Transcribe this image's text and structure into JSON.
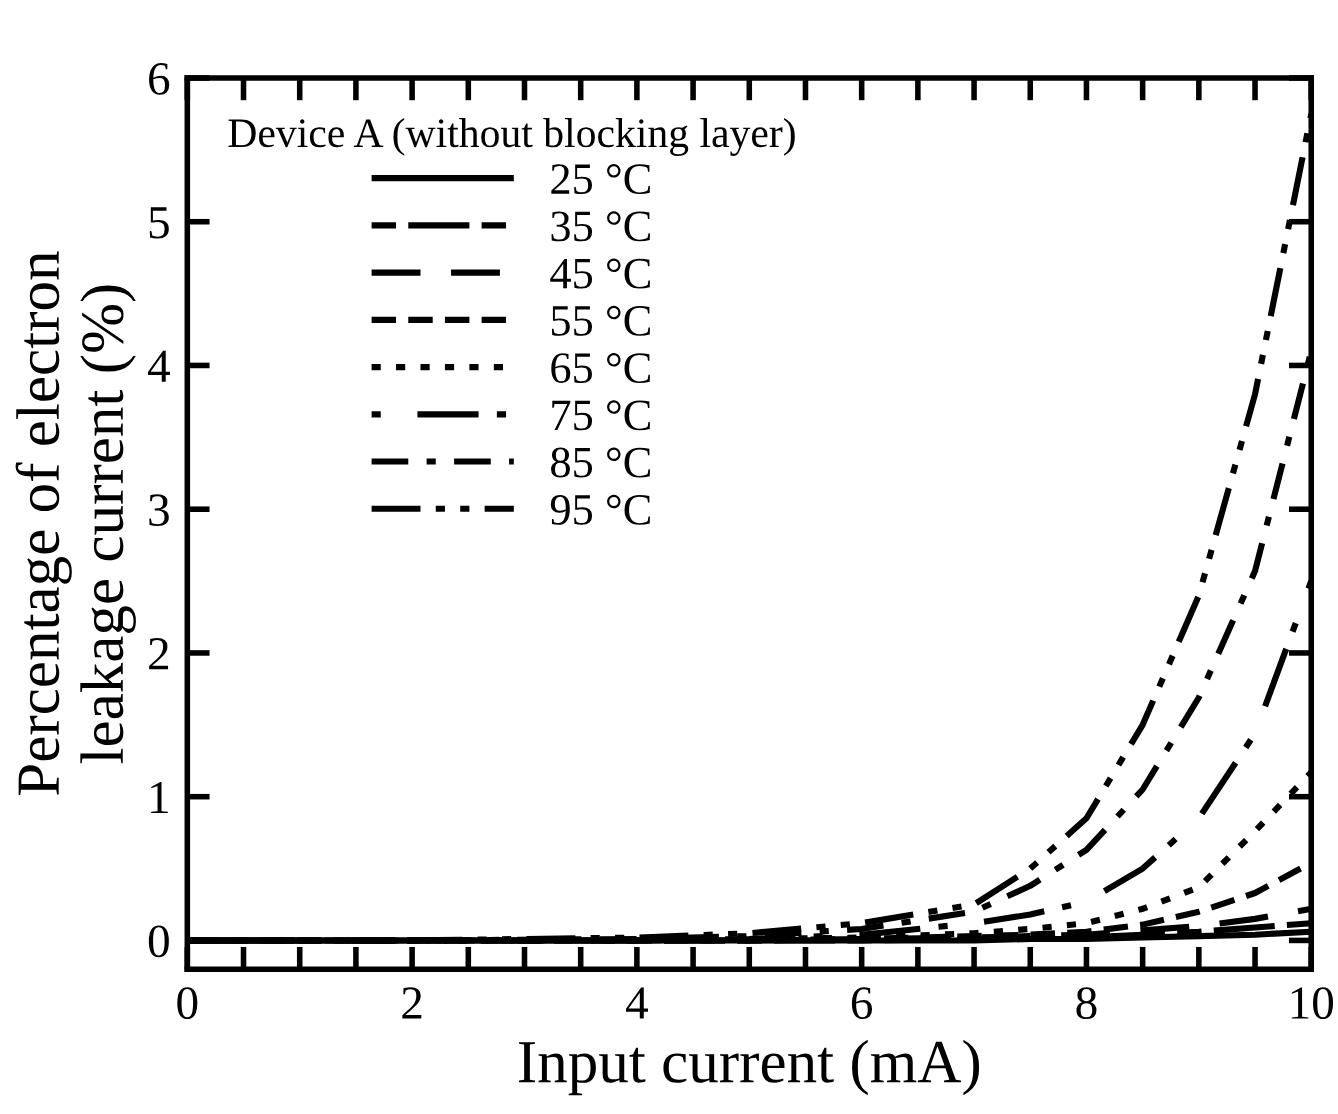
{
  "chart_data": {
    "type": "line",
    "xlabel": "Input current (mA)",
    "ylabel": "Percentage of electron\nleakage current (%)",
    "legend_title": "Device A (without blocking layer)",
    "legend": "top left",
    "grid": false,
    "marker": "none",
    "x": [
      0,
      2,
      4,
      5,
      6,
      7,
      7.5,
      8,
      8.5,
      9,
      9.5,
      10
    ],
    "xlim": [
      0,
      10
    ],
    "ylim": [
      -0.2,
      6
    ],
    "xticks": [
      0,
      {
        "value": 0.5,
        "label": null
      },
      2,
      {
        "value": 1,
        "label": null
      },
      {
        "value": 1.5,
        "label": null
      },
      {
        "value": 2.5,
        "label": null
      },
      {
        "value": 3,
        "label": null
      },
      {
        "value": 3.5,
        "label": null
      },
      4,
      {
        "value": 4.5,
        "label": null
      },
      {
        "value": 5,
        "label": null
      },
      {
        "value": 5.5,
        "label": null
      },
      6,
      {
        "value": 6.5,
        "label": null
      },
      {
        "value": 7,
        "label": null
      },
      {
        "value": 7.5,
        "label": null
      },
      8,
      {
        "value": 8.5,
        "label": null
      },
      {
        "value": 9,
        "label": null
      },
      {
        "value": 9.5,
        "label": null
      },
      10
    ],
    "yticks": [
      0,
      1,
      2,
      3,
      4,
      5,
      6
    ],
    "series": [
      {
        "name": "25 °C",
        "color": "#000000",
        "line_style": "solid",
        "values": [
          0,
          0,
          0,
          0,
          0,
          0,
          0.01,
          0.01,
          0.02,
          0.03,
          0.04,
          0.06
        ]
      },
      {
        "name": "35 °C",
        "color": "#000000",
        "line_style": "dash-longdash",
        "values": [
          0,
          0,
          0,
          0,
          0,
          0.01,
          0.01,
          0.02,
          0.04,
          0.06,
          0.09,
          0.12
        ]
      },
      {
        "name": "45 °C",
        "color": "#000000",
        "line_style": "longdash",
        "values": [
          0,
          0,
          0,
          0,
          0.01,
          0.02,
          0.03,
          0.04,
          0.07,
          0.1,
          0.15,
          0.22
        ]
      },
      {
        "name": "55 °C",
        "color": "#000000",
        "line_style": "dashed",
        "values": [
          0,
          0,
          0,
          0,
          0.01,
          0.03,
          0.04,
          0.06,
          0.11,
          0.2,
          0.33,
          0.54
        ]
      },
      {
        "name": "65 °C",
        "color": "#000000",
        "line_style": "dotted",
        "values": [
          0,
          0,
          0,
          0.01,
          0.02,
          0.05,
          0.08,
          0.12,
          0.22,
          0.37,
          0.76,
          1.17
        ]
      },
      {
        "name": "75 °C",
        "color": "#000000",
        "line_style": "dot-longdash",
        "values": [
          0,
          0,
          0,
          0.01,
          0.04,
          0.12,
          0.18,
          0.27,
          0.5,
          0.85,
          1.44,
          2.5
        ]
      },
      {
        "name": "85 °C",
        "color": "#000000",
        "line_style": "dashdot",
        "values": [
          0,
          0,
          0.01,
          0.03,
          0.08,
          0.2,
          0.38,
          0.63,
          1.05,
          1.69,
          2.57,
          4.1
        ]
      },
      {
        "name": "95 °C",
        "color": "#000000",
        "line_style": "dashdotdot",
        "values": [
          0,
          0,
          0.02,
          0.05,
          0.12,
          0.25,
          0.5,
          0.85,
          1.5,
          2.4,
          3.8,
          5.75
        ]
      }
    ]
  }
}
